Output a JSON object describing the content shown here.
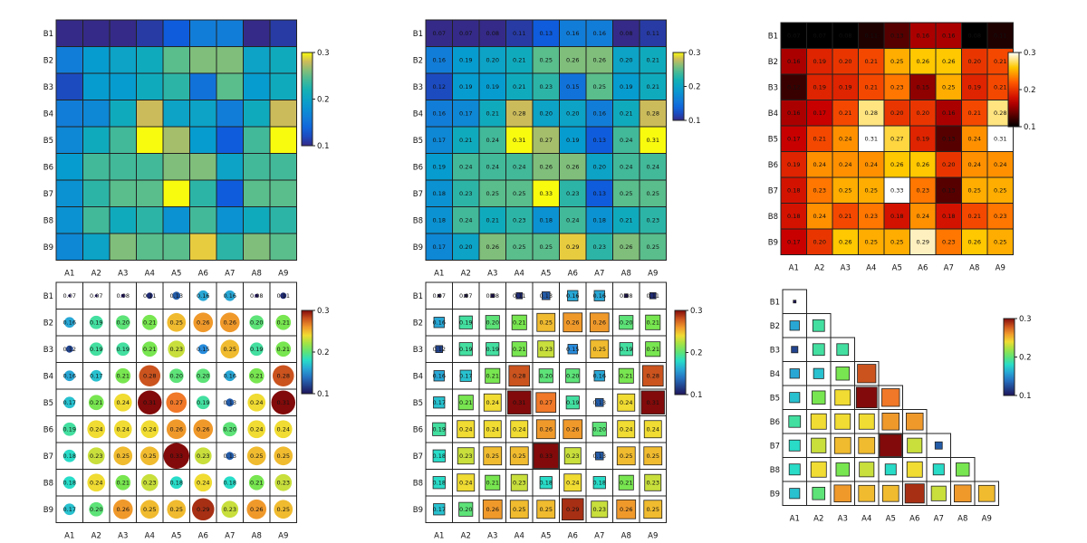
{
  "chart_data": [
    {
      "type": "heatmap",
      "variant": "plain",
      "colormap": "parula",
      "shape": "full",
      "show_values": false,
      "x_categories": [
        "A1",
        "A2",
        "A3",
        "A4",
        "A5",
        "A6",
        "A7",
        "A8",
        "A9"
      ],
      "y_categories": [
        "B1",
        "B2",
        "B3",
        "B4",
        "B5",
        "B6",
        "B7",
        "B8",
        "B9"
      ],
      "colorbar": {
        "ticks": [
          "0.1",
          "0.2",
          "0.3"
        ],
        "range": [
          0.1,
          0.3
        ]
      }
    },
    {
      "type": "heatmap",
      "variant": "plain",
      "colormap": "parula",
      "shape": "full",
      "show_values": true,
      "x_categories": [
        "A1",
        "A2",
        "A3",
        "A4",
        "A5",
        "A6",
        "A7",
        "A8",
        "A9"
      ],
      "y_categories": [
        "B1",
        "B2",
        "B3",
        "B4",
        "B5",
        "B6",
        "B7",
        "B8",
        "B9"
      ],
      "colorbar": {
        "ticks": [
          "0.1",
          "0.2",
          "0.3"
        ],
        "range": [
          0.1,
          0.3
        ]
      }
    },
    {
      "type": "heatmap",
      "variant": "plain",
      "colormap": "hot",
      "shape": "full",
      "show_values": true,
      "x_categories": [
        "A1",
        "A2",
        "A3",
        "A4",
        "A5",
        "A6",
        "A7",
        "A8",
        "A9"
      ],
      "y_categories": [
        "B1",
        "B2",
        "B3",
        "B4",
        "B5",
        "B6",
        "B7",
        "B8",
        "B9"
      ],
      "colorbar": {
        "ticks": [
          "0.1",
          "0.2",
          "0.3"
        ],
        "range": [
          0.1,
          0.3
        ]
      }
    },
    {
      "type": "heatmap",
      "variant": "circle",
      "colormap": "jet",
      "shape": "full",
      "show_values": true,
      "x_categories": [
        "A1",
        "A2",
        "A3",
        "A4",
        "A5",
        "A6",
        "A7",
        "A8",
        "A9"
      ],
      "y_categories": [
        "B1",
        "B2",
        "B3",
        "B4",
        "B5",
        "B6",
        "B7",
        "B8",
        "B9"
      ],
      "colorbar": {
        "ticks": [
          "0.1",
          "0.2",
          "0.3"
        ],
        "range": [
          0.1,
          0.3
        ]
      }
    },
    {
      "type": "heatmap",
      "variant": "square",
      "colormap": "jet",
      "shape": "full",
      "show_values": true,
      "x_categories": [
        "A1",
        "A2",
        "A3",
        "A4",
        "A5",
        "A6",
        "A7",
        "A8",
        "A9"
      ],
      "y_categories": [
        "B1",
        "B2",
        "B3",
        "B4",
        "B5",
        "B6",
        "B7",
        "B8",
        "B9"
      ],
      "colorbar": {
        "ticks": [
          "0.1",
          "0.2",
          "0.3"
        ],
        "range": [
          0.1,
          0.3
        ]
      }
    },
    {
      "type": "heatmap",
      "variant": "square",
      "colormap": "jet",
      "shape": "lower-triangle",
      "show_values": false,
      "x_categories": [
        "A1",
        "A2",
        "A3",
        "A4",
        "A5",
        "A6",
        "A7",
        "A8",
        "A9"
      ],
      "y_categories": [
        "B1",
        "B2",
        "B3",
        "B4",
        "B5",
        "B6",
        "B7",
        "B8",
        "B9"
      ],
      "colorbar": {
        "ticks": [
          "0.1",
          "0.2",
          "0.3"
        ],
        "range": [
          0.1,
          0.3
        ]
      }
    }
  ],
  "matrix": [
    [
      0.07,
      0.07,
      0.08,
      0.11,
      0.13,
      0.16,
      0.16,
      0.08,
      0.11
    ],
    [
      0.16,
      0.19,
      0.2,
      0.21,
      0.25,
      0.26,
      0.26,
      0.2,
      0.21
    ],
    [
      0.12,
      0.19,
      0.19,
      0.21,
      0.23,
      0.15,
      0.25,
      0.19,
      0.21
    ],
    [
      0.16,
      0.17,
      0.21,
      0.28,
      0.2,
      0.2,
      0.16,
      0.21,
      0.28
    ],
    [
      0.17,
      0.21,
      0.24,
      0.31,
      0.27,
      0.19,
      0.13,
      0.24,
      0.31
    ],
    [
      0.19,
      0.24,
      0.24,
      0.24,
      0.26,
      0.26,
      0.2,
      0.24,
      0.24
    ],
    [
      0.18,
      0.23,
      0.25,
      0.25,
      0.33,
      0.23,
      0.13,
      0.25,
      0.25
    ],
    [
      0.18,
      0.24,
      0.21,
      0.23,
      0.18,
      0.24,
      0.18,
      0.21,
      0.23
    ],
    [
      0.17,
      0.2,
      0.26,
      0.25,
      0.25,
      0.29,
      0.23,
      0.26,
      0.25
    ]
  ]
}
